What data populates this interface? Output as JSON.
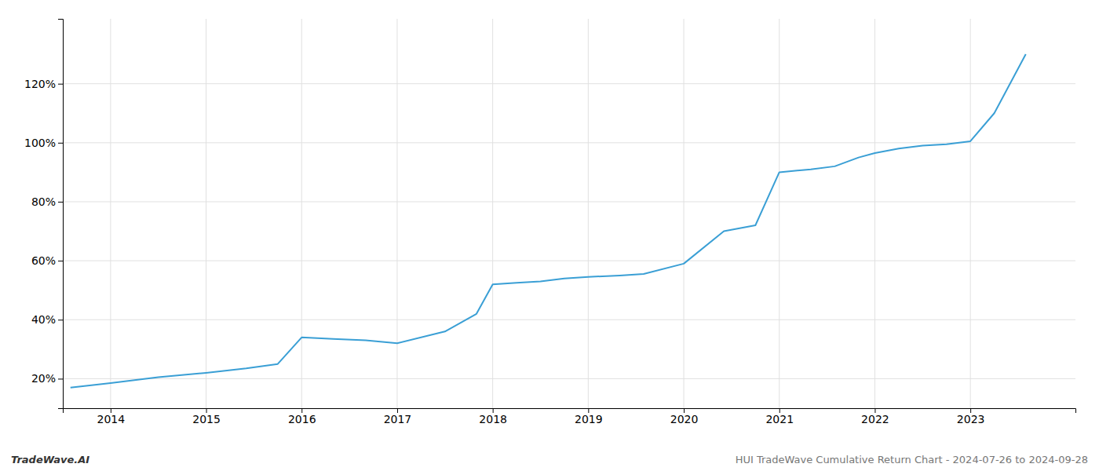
{
  "chart_data": {
    "type": "line",
    "x": [
      2013.58,
      2014.0,
      2014.5,
      2015.0,
      2015.42,
      2015.75,
      2016.0,
      2016.33,
      2016.67,
      2017.0,
      2017.5,
      2017.83,
      2018.0,
      2018.25,
      2018.5,
      2018.75,
      2019.0,
      2019.33,
      2019.58,
      2020.0,
      2020.42,
      2020.75,
      2021.0,
      2021.33,
      2021.58,
      2021.83,
      2022.0,
      2022.25,
      2022.5,
      2022.75,
      2023.0,
      2023.25,
      2023.58
    ],
    "values": [
      17.0,
      18.5,
      20.5,
      22.0,
      23.5,
      25.0,
      34.0,
      33.5,
      33.0,
      32.0,
      36.0,
      42.0,
      52.0,
      52.5,
      53.0,
      54.0,
      54.5,
      55.0,
      55.5,
      59.0,
      70.0,
      72.0,
      90.0,
      91.0,
      92.0,
      95.0,
      96.5,
      98.0,
      99.0,
      99.5,
      100.5,
      110.0,
      130.0
    ],
    "color": "#3a9fd5",
    "xlim": [
      2013.5,
      2024.1
    ],
    "xticks": [
      2014,
      2015,
      2016,
      2017,
      2018,
      2019,
      2020,
      2021,
      2022,
      2023
    ],
    "ylim": [
      10,
      142
    ],
    "yticks": [
      {
        "value": 20,
        "label": "20%"
      },
      {
        "value": 40,
        "label": "40%"
      },
      {
        "value": 60,
        "label": "60%"
      },
      {
        "value": 80,
        "label": "80%"
      },
      {
        "value": 100,
        "label": "100%"
      },
      {
        "value": 120,
        "label": "120%"
      }
    ],
    "grid": true,
    "annotations": [
      "TradeWave.AI",
      "HUI TradeWave Cumulative Return Chart - 2024-07-26 to 2024-09-28"
    ]
  }
}
